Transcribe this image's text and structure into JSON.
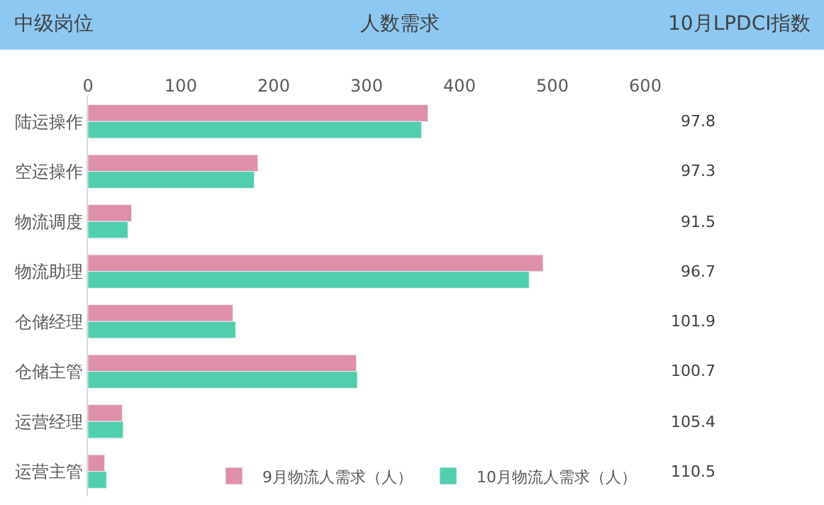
{
  "chart_data": {
    "type": "bar",
    "orientation": "horizontal",
    "xlabel": "人数需求",
    "ylabel": "中级岗位",
    "categories": [
      "陆运操作",
      "空运操作",
      "物流调度",
      "物流助理",
      "仓储经理",
      "仓储主管",
      "运营经理",
      "运营主管"
    ],
    "series": [
      {
        "name": "9月物流人需求（人）",
        "color": "#e08fa8",
        "values": [
          366,
          183,
          47,
          490,
          156,
          289,
          37,
          18
        ]
      },
      {
        "name": "10月物流人需求（人）",
        "color": "#4fcfad",
        "values": [
          359,
          179,
          43,
          475,
          159,
          290,
          38,
          20
        ]
      }
    ],
    "xlim": [
      0,
      600
    ],
    "xticks": [
      0,
      100,
      200,
      300,
      400,
      500,
      600
    ],
    "legend": "bottom",
    "annotations": [
      "10月LPDCI指数",
      "97.8",
      "97.3",
      "91.5",
      "96.7",
      "101.9",
      "100.7",
      "105.4",
      "110.5"
    ]
  }
}
